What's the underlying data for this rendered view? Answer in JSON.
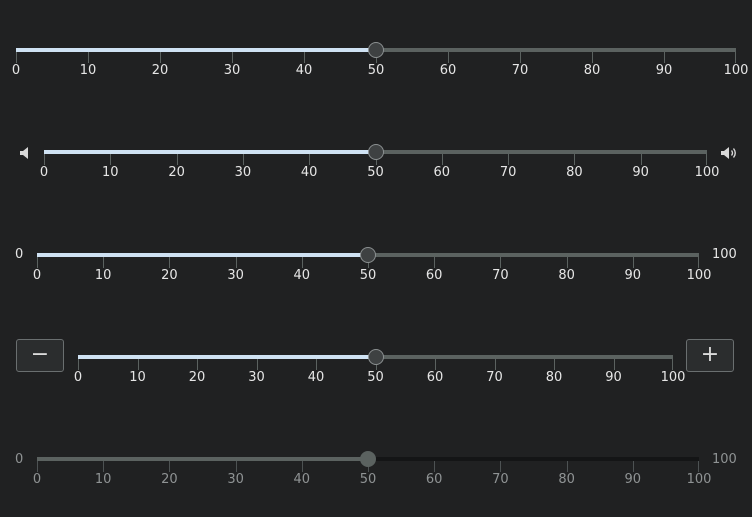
{
  "tick_labels": [
    "0",
    "10",
    "20",
    "30",
    "40",
    "50",
    "60",
    "70",
    "80",
    "90",
    "100"
  ],
  "sliders": [
    {
      "id": "slider-basic",
      "value": 50,
      "min": 0,
      "max": 100
    },
    {
      "id": "slider-volume",
      "value": 50,
      "min": 0,
      "max": 100,
      "left_icon": "volume-mute-icon",
      "right_icon": "volume-up-icon"
    },
    {
      "id": "slider-range-labels",
      "value": 50,
      "min": 0,
      "max": 100,
      "min_label": "0",
      "max_label": "100"
    },
    {
      "id": "slider-stepper",
      "value": 50,
      "min": 0,
      "max": 100,
      "decrement_label": "−",
      "increment_label": "+"
    },
    {
      "id": "slider-disabled",
      "value": 50,
      "min": 0,
      "max": 100,
      "min_label": "0",
      "max_label": "100",
      "disabled": true
    }
  ],
  "colors": {
    "background": "#202122",
    "track": "#5b6260",
    "fill": "#cfe2f3",
    "thumb": "#3e4142"
  }
}
